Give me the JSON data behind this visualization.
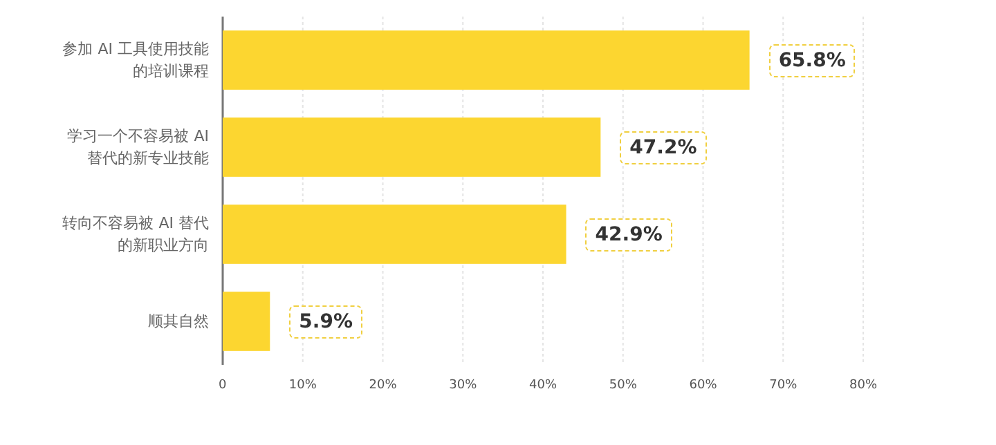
{
  "chart_data": {
    "type": "bar",
    "orientation": "horizontal",
    "categories": [
      "参加 AI 工具使用技能的培训课程",
      "学习一个不容易被 AI 替代的新专业技能",
      "转向不容易被 AI 替代的新职业方向",
      "顺其自然"
    ],
    "values": [
      65.8,
      47.2,
      42.9,
      5.9
    ],
    "value_labels": [
      "65.8%",
      "47.2%",
      "42.9%",
      "5.9%"
    ],
    "color": "#fcd630",
    "xlim": [
      0,
      80
    ],
    "xticks": [
      0,
      {
        "value": 10,
        "label": "10%"
      },
      {
        "value": 20,
        "label": "20%"
      },
      {
        "value": 30,
        "label": "30%"
      },
      {
        "value": 40,
        "label": "40%"
      },
      {
        "value": 50,
        "label": "50%"
      },
      {
        "value": 60,
        "label": "60%"
      },
      {
        "value": 70,
        "label": "70%"
      },
      {
        "value": 80,
        "label": "80%"
      }
    ],
    "grid": "x"
  }
}
